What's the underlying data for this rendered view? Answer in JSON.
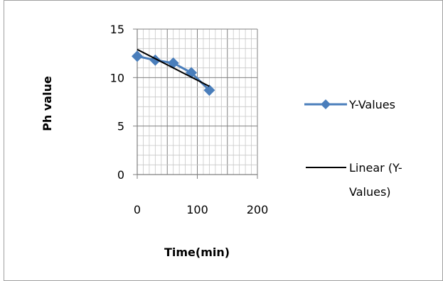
{
  "chart_data": {
    "type": "scatter",
    "xlabel": "Time(min)",
    "ylabel": "Ph value",
    "xlim": [
      0,
      200
    ],
    "ylim": [
      0,
      15
    ],
    "x_ticks": [
      "0",
      "100",
      "200"
    ],
    "y_ticks": [
      "0",
      "5",
      "10",
      "15"
    ],
    "minor_grid": true,
    "grid": true,
    "legend_position": "right",
    "series": [
      {
        "name": "Y-Values",
        "color": "#4a7ebb",
        "marker": "diamond",
        "x": [
          0,
          30,
          60,
          90,
          120
        ],
        "y": [
          12.2,
          11.8,
          11.5,
          10.5,
          8.7
        ]
      }
    ],
    "trendline": {
      "name_line1": "Linear (Y-",
      "name_line2": "Values)",
      "color": "#000000",
      "x": [
        0,
        120
      ],
      "y": [
        12.9,
        9.1
      ]
    }
  }
}
